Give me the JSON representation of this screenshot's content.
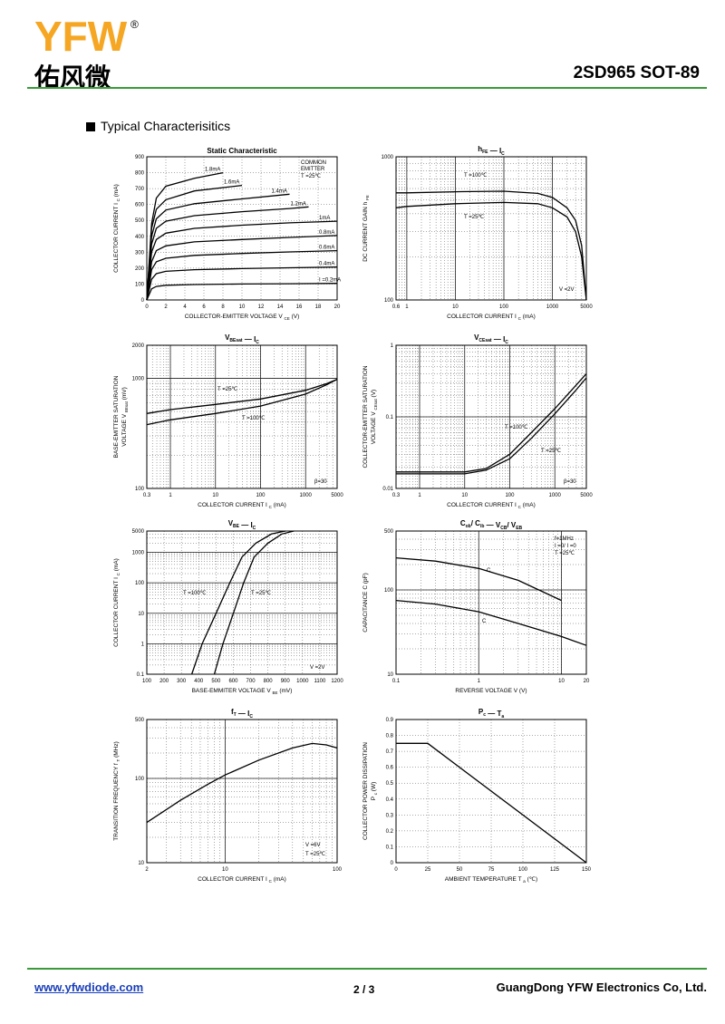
{
  "header": {
    "logo_text": "YFW",
    "logo_cn": "佑风微",
    "part_number": "2SD965  SOT-89",
    "brand_color": "#f5a623",
    "accent_color": "#3a9a3a"
  },
  "section_title": "Typical  Characterisitics",
  "footer": {
    "url": "www.yfwdiode.com",
    "page": "2 / 3",
    "company": "GuangDong YFW Electronics Co, Ltd."
  },
  "chart_data": [
    {
      "id": "static",
      "type": "line",
      "title": "Static Characteristic",
      "xlabel": "COLLECTOR-EMITTER VOLTAGE   V",
      "xlabel_sub": "CE",
      "xlabel_unit": "(V)",
      "ylabel": "COLLECTOR CURRENT   I",
      "ylabel_sub": "C",
      "ylabel_unit": "(mA)",
      "xlim": [
        0,
        20
      ],
      "ylim": [
        0,
        900
      ],
      "xticks": [
        0,
        2,
        4,
        6,
        8,
        10,
        12,
        14,
        16,
        18,
        20
      ],
      "yticks": [
        0,
        100,
        200,
        300,
        400,
        500,
        600,
        700,
        800,
        900
      ],
      "annotations": [
        "COMMON",
        "EMITTER",
        "T =25℃"
      ],
      "series": [
        {
          "name": "I =0.2mA",
          "x": [
            0,
            0.5,
            1,
            2,
            5,
            10,
            15,
            20
          ],
          "y": [
            0,
            70,
            85,
            92,
            97,
            100,
            102,
            104
          ]
        },
        {
          "name": "0.4mA",
          "x": [
            0,
            0.5,
            1,
            2,
            5,
            10,
            15,
            20
          ],
          "y": [
            0,
            130,
            165,
            180,
            190,
            197,
            202,
            207
          ]
        },
        {
          "name": "0.6mA",
          "x": [
            0,
            0.5,
            1,
            2,
            5,
            10,
            15,
            20
          ],
          "y": [
            0,
            190,
            240,
            262,
            280,
            292,
            302,
            310
          ]
        },
        {
          "name": "0.8mA",
          "x": [
            0,
            0.5,
            1,
            2,
            5,
            10,
            15,
            20
          ],
          "y": [
            0,
            240,
            310,
            340,
            365,
            380,
            393,
            405
          ]
        },
        {
          "name": "1mA",
          "x": [
            0,
            0.5,
            1,
            2,
            5,
            10,
            15,
            20
          ],
          "y": [
            0,
            300,
            380,
            420,
            450,
            470,
            485,
            495
          ]
        },
        {
          "name": "1.2mA",
          "x": [
            0,
            0.5,
            1,
            2,
            5,
            10,
            15,
            17
          ],
          "y": [
            0,
            350,
            450,
            495,
            530,
            555,
            575,
            585
          ]
        },
        {
          "name": "1.4mA",
          "x": [
            0,
            0.5,
            1,
            2,
            5,
            10,
            15
          ],
          "y": [
            0,
            400,
            510,
            565,
            605,
            635,
            665
          ]
        },
        {
          "name": "1.6mA",
          "x": [
            0,
            0.5,
            1,
            2,
            5,
            10
          ],
          "y": [
            0,
            450,
            570,
            630,
            685,
            720
          ]
        },
        {
          "name": "1.8mA",
          "x": [
            0,
            0.5,
            1,
            2,
            5,
            8
          ],
          "y": [
            0,
            480,
            640,
            715,
            765,
            800
          ]
        }
      ]
    },
    {
      "id": "hfe",
      "type": "line",
      "title": "h    —   I",
      "title_parts": [
        "h",
        "FE",
        "—",
        "I",
        "C"
      ],
      "xlabel": "COLLECTOR CURRENT   I",
      "xlabel_sub": "C",
      "xlabel_unit": "(mA)",
      "ylabel": "DC CURRENT GAIN   h",
      "ylabel_sub": "FE",
      "xscale": "log",
      "yscale": "log",
      "xlim": [
        0.6,
        5000
      ],
      "ylim": [
        100,
        1000
      ],
      "xticks": [
        0.6,
        1,
        10,
        100,
        1000,
        5000
      ],
      "yticks": [
        100,
        1000
      ],
      "annotations": [
        "T =100℃",
        "T =25℃",
        "V  =2V"
      ],
      "series": [
        {
          "name": "T =100℃",
          "x": [
            0.6,
            1,
            10,
            100,
            500,
            1000,
            2000,
            3000,
            4000,
            5000
          ],
          "y": [
            560,
            560,
            570,
            575,
            555,
            520,
            440,
            360,
            240,
            100
          ]
        },
        {
          "name": "T =25℃",
          "x": [
            0.6,
            1,
            10,
            100,
            500,
            1000,
            2000,
            3000,
            4000,
            5000
          ],
          "y": [
            440,
            450,
            470,
            480,
            470,
            440,
            380,
            300,
            200,
            100
          ]
        }
      ]
    },
    {
      "id": "vbesat",
      "type": "line",
      "title": "V        —   I",
      "title_parts": [
        "V",
        "BEsat",
        "—",
        "I",
        "C"
      ],
      "xlabel": "COLLECTOR CURRENT   I",
      "xlabel_sub": "C",
      "xlabel_unit": "(mA)",
      "ylabel": "BASE-EMITTER SATURATION",
      "ylabel2": "VOLTAGE   V",
      "ylabel2_sub": "BEsat",
      "ylabel2_unit": "(mV)",
      "xscale": "log",
      "yscale": "log",
      "xlim": [
        0.3,
        5000
      ],
      "ylim": [
        100,
        2000
      ],
      "xticks": [
        0.3,
        1,
        10,
        100,
        1000,
        5000
      ],
      "yticks": [
        100,
        1000,
        2000
      ],
      "annotations": [
        "T =25℃",
        "T =100℃",
        "β=30"
      ],
      "series": [
        {
          "name": "T =25℃",
          "x": [
            0.3,
            1,
            10,
            100,
            1000,
            3000,
            5000
          ],
          "y": [
            480,
            520,
            580,
            650,
            780,
            900,
            980
          ]
        },
        {
          "name": "T =100℃",
          "x": [
            0.3,
            1,
            10,
            100,
            1000,
            3000,
            5000
          ],
          "y": [
            380,
            420,
            480,
            560,
            720,
            880,
            980
          ]
        }
      ]
    },
    {
      "id": "vcesat",
      "type": "line",
      "title": "V        —   I",
      "title_parts": [
        "V",
        "CEsat",
        "—",
        "I",
        "C"
      ],
      "xlabel": "COLLECTOR CURRENT   I",
      "xlabel_sub": "C",
      "xlabel_unit": "(mA)",
      "ylabel": "COLLECTOR-EMITTER SATURATION",
      "ylabel2": "VOLTAGE   V",
      "ylabel2_sub": "CEsat",
      "ylabel2_unit": "(V)",
      "xscale": "log",
      "yscale": "log",
      "xlim": [
        0.3,
        5000
      ],
      "ylim": [
        0.01,
        1
      ],
      "xticks": [
        0.3,
        1,
        10,
        100,
        1000,
        5000
      ],
      "yticks": [
        0.01,
        0.1,
        1
      ],
      "annotations": [
        "T =100℃",
        "T =25℃",
        "β=30"
      ],
      "series": [
        {
          "name": "T =100℃",
          "x": [
            0.3,
            1,
            10,
            30,
            100,
            300,
            1000,
            3000,
            5000
          ],
          "y": [
            0.017,
            0.017,
            0.017,
            0.019,
            0.03,
            0.06,
            0.13,
            0.28,
            0.4
          ]
        },
        {
          "name": "T =25℃",
          "x": [
            0.3,
            1,
            10,
            30,
            100,
            300,
            1000,
            3000,
            5000
          ],
          "y": [
            0.016,
            0.016,
            0.016,
            0.018,
            0.026,
            0.05,
            0.11,
            0.24,
            0.35
          ]
        }
      ]
    },
    {
      "id": "vbe",
      "type": "line",
      "title": "V     —   I",
      "title_parts": [
        "V",
        "BE",
        "—",
        "I",
        "C"
      ],
      "xlabel": "BASE-EMMITER VOLTAGE   V",
      "xlabel_sub": "BE",
      "xlabel_unit": "(mV)",
      "ylabel": "COLLECTOR CURRENT   I",
      "ylabel_sub": "C",
      "ylabel_unit": "(mA)",
      "yscale": "log",
      "xlim": [
        100,
        1200
      ],
      "ylim": [
        0.1,
        5000
      ],
      "xticks": [
        100,
        200,
        300,
        400,
        500,
        600,
        700,
        800,
        900,
        1000,
        1100,
        1200
      ],
      "yticks": [
        0.1,
        1,
        10,
        100,
        1000,
        5000
      ],
      "annotations": [
        "T =100℃",
        "T =25℃",
        "V  =2V"
      ],
      "series": [
        {
          "name": "T =100℃",
          "x": [
            360,
            420,
            500,
            580,
            650,
            730,
            820,
            900
          ],
          "y": [
            0.1,
            1,
            10,
            100,
            700,
            2000,
            4000,
            5000
          ]
        },
        {
          "name": "T =25℃",
          "x": [
            490,
            540,
            600,
            660,
            720,
            800,
            880,
            950
          ],
          "y": [
            0.1,
            1,
            10,
            100,
            700,
            2000,
            4000,
            5000
          ]
        }
      ]
    },
    {
      "id": "cap",
      "type": "line",
      "title": "C    / C    —   V    / V",
      "title_parts": [
        "C",
        "ob",
        "/ C",
        "ib",
        "—",
        "V",
        "CB",
        "/ V",
        "EB"
      ],
      "xlabel": "REVERSE VOLTAGE   V   (V)",
      "ylabel": "CAPACITANCE   C   (pF)",
      "xscale": "log",
      "yscale": "log",
      "xlim": [
        0.1,
        20
      ],
      "ylim": [
        10,
        500
      ],
      "xticks": [
        0.1,
        1,
        10,
        20
      ],
      "yticks": [
        10,
        100,
        500
      ],
      "annotations": [
        "f=1MHz",
        "I =0/ I =0",
        "T =25℃",
        "C",
        "C"
      ],
      "series": [
        {
          "name": "C  (upper)",
          "x": [
            0.1,
            0.3,
            1,
            3,
            10
          ],
          "y": [
            240,
            220,
            180,
            130,
            75
          ]
        },
        {
          "name": "C  (lower)",
          "x": [
            0.1,
            0.3,
            1,
            3,
            10,
            20
          ],
          "y": [
            75,
            68,
            55,
            40,
            28,
            22
          ]
        }
      ]
    },
    {
      "id": "ft",
      "type": "line",
      "title": "f    —   I",
      "title_parts": [
        "f",
        "T",
        "—",
        "I",
        "C"
      ],
      "xlabel": "COLLECTOR CURRENT   I",
      "xlabel_sub": "C",
      "xlabel_unit": "(mA)",
      "ylabel": "TRANSITION FREQUENCY   f",
      "ylabel_sub": "T",
      "ylabel_unit": "(MHz)",
      "xscale": "log",
      "yscale": "log",
      "xlim": [
        2,
        100
      ],
      "ylim": [
        10,
        500
      ],
      "xticks": [
        2,
        10,
        100
      ],
      "yticks": [
        10,
        100,
        500
      ],
      "annotations": [
        "V  =6V",
        "T =25℃"
      ],
      "series": [
        {
          "name": "fT",
          "x": [
            2,
            4,
            7,
            10,
            20,
            40,
            60,
            80,
            100
          ],
          "y": [
            30,
            55,
            85,
            110,
            165,
            230,
            260,
            250,
            230
          ]
        }
      ]
    },
    {
      "id": "pc",
      "type": "line",
      "title": "P    —   T",
      "title_parts": [
        "P",
        "c",
        "—",
        "T",
        "a"
      ],
      "xlabel": "AMBIENT TEMPERATURE   T",
      "xlabel_sub": "a",
      "xlabel_unit": "(℃)",
      "ylabel": "COLLECTOR POWER DISSIPATION",
      "ylabel2": "P",
      "ylabel2_sub": "c",
      "ylabel2_unit": "(W)",
      "xlim": [
        0,
        150
      ],
      "ylim": [
        0,
        0.9
      ],
      "xticks": [
        0,
        25,
        50,
        75,
        100,
        125,
        150
      ],
      "yticks": [
        0.0,
        0.1,
        0.2,
        0.3,
        0.4,
        0.5,
        0.6,
        0.7,
        0.8,
        0.9
      ],
      "series": [
        {
          "name": "Pc",
          "x": [
            0,
            25,
            150
          ],
          "y": [
            0.75,
            0.75,
            0
          ]
        }
      ]
    }
  ]
}
